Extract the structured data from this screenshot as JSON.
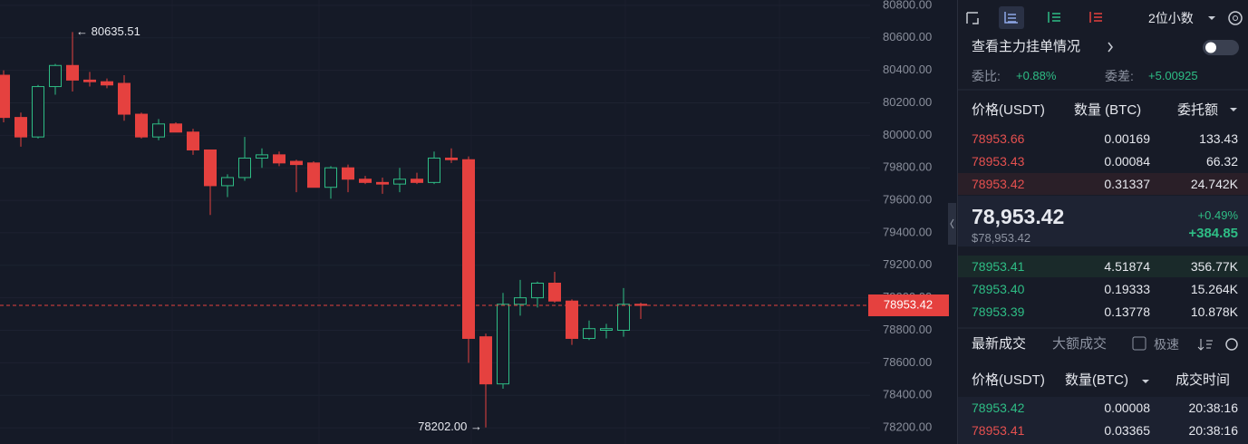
{
  "chart_data": {
    "type": "candlestick",
    "open": [
      80370,
      80110,
      79990,
      80300,
      80430,
      80340,
      80330,
      80320,
      80130,
      79990,
      80070,
      80020,
      79910,
      79690,
      79740,
      79860,
      79880,
      79840,
      79830,
      79680,
      79800,
      79730,
      79710,
      79700,
      79730,
      79710,
      79860,
      79850,
      78760,
      78470,
      78960,
      79000,
      79090,
      78980,
      78750,
      78800,
      78800,
      78960
    ],
    "high": [
      80400,
      80140,
      80310,
      80440,
      80635.51,
      80390,
      80350,
      80370,
      80140,
      80100,
      80080,
      80040,
      79910,
      79760,
      79990,
      79920,
      79900,
      79850,
      79840,
      79810,
      79820,
      79750,
      79740,
      79800,
      79770,
      79900,
      79920,
      79870,
      78780,
      79030,
      79110,
      79100,
      79160,
      78990,
      78860,
      78840,
      79060,
      78970
    ],
    "low": [
      80080,
      79930,
      79980,
      80250,
      80270,
      80300,
      80290,
      80090,
      79980,
      79970,
      80020,
      79880,
      79510,
      79620,
      79720,
      79800,
      79810,
      79650,
      79680,
      79610,
      79650,
      79700,
      79640,
      79650,
      79700,
      79700,
      79830,
      78600,
      78202,
      78440,
      78890,
      78940,
      78970,
      78710,
      78740,
      78750,
      78760,
      78870
    ],
    "close": [
      80110,
      79990,
      80300,
      80430,
      80340,
      80330,
      80310,
      80130,
      79990,
      80070,
      80020,
      79910,
      79690,
      79740,
      79860,
      79880,
      79830,
      79820,
      79680,
      79800,
      79730,
      79710,
      79700,
      79730,
      79710,
      79860,
      79850,
      78750,
      78470,
      78960,
      79000,
      79090,
      78980,
      78750,
      78810,
      78810,
      78960,
      78953.42
    ],
    "up_color": "#2ebd85",
    "down_color": "#e5413f",
    "hollow_up": true,
    "grid": true,
    "ylim": [
      78100,
      80833
    ],
    "yticks": [
      {
        "value": 80800,
        "label": "80800.00"
      },
      {
        "value": 80600,
        "label": "80600.00"
      },
      {
        "value": 80400,
        "label": "80400.00"
      },
      {
        "value": 80200,
        "label": "80200.00"
      },
      {
        "value": 80000,
        "label": "80000.00"
      },
      {
        "value": 79800,
        "label": "79800.00"
      },
      {
        "value": 79600,
        "label": "79600.00"
      },
      {
        "value": 79400,
        "label": "79400.00"
      },
      {
        "value": 79200,
        "label": "79200.00"
      },
      {
        "value": 79000,
        "label": "79000.00"
      },
      {
        "value": 78800,
        "label": "78800.00"
      },
      {
        "value": 78600,
        "label": "78600.00"
      },
      {
        "value": 78400,
        "label": "78400.00"
      },
      {
        "value": 78200,
        "label": "78200.00"
      }
    ],
    "high_label": "← 80635.51",
    "low_label": "78202.00 →",
    "last_price": 78953.42
  },
  "panel": {
    "precision": "2位小数",
    "orderbook": {
      "link": "查看主力挂单情况",
      "ratio_label": "委比:",
      "ratio": "+0.88%",
      "diff_label": "委差:",
      "diff": "+5.00925",
      "columns": [
        "价格(USDT)",
        "数量 (BTC)",
        "委托额"
      ],
      "asks": [
        [
          "78953.66",
          "0.00169",
          "133.43"
        ],
        [
          "78953.43",
          "0.00084",
          "66.32"
        ],
        [
          "78953.42",
          "0.31337",
          "24.742K"
        ]
      ],
      "last_price": "78,953.42",
      "last_price_usd": "$78,953.42",
      "change_pct": "+0.49%",
      "change": "+384.85",
      "bids": [
        [
          "78953.41",
          "4.51874",
          "356.77K"
        ],
        [
          "78953.40",
          "0.19333",
          "15.264K"
        ],
        [
          "78953.39",
          "0.13778",
          "10.878K"
        ]
      ]
    },
    "trades": {
      "tabs": [
        "最新成交",
        "大额成交"
      ],
      "fast": "极速",
      "columns": [
        "价格(USDT)",
        "数量(BTC)",
        "成交时间"
      ],
      "rows": [
        [
          "78953.42",
          "0.00008",
          "20:38:16"
        ],
        [
          "78953.41",
          "0.03365",
          "20:38:16"
        ]
      ]
    }
  }
}
